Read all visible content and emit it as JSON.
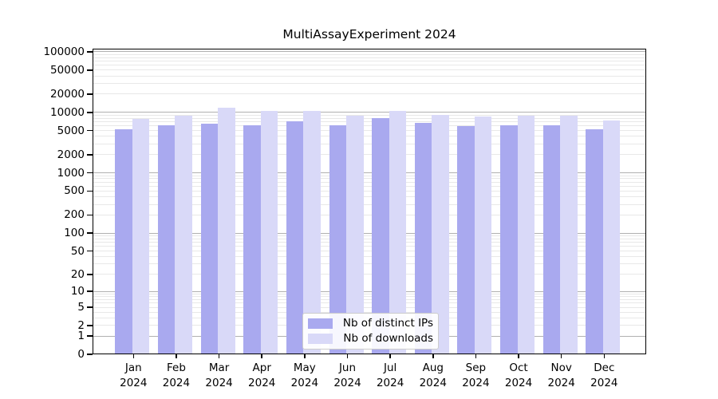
{
  "chart_data": {
    "type": "bar",
    "title": "MultiAssayExperiment 2024",
    "categories": [
      "Jan",
      "Feb",
      "Mar",
      "Apr",
      "May",
      "Jun",
      "Jul",
      "Aug",
      "Sep",
      "Oct",
      "Nov",
      "Dec"
    ],
    "year": "2024",
    "series": [
      {
        "name": "Nb of distinct IPs",
        "color": "#a9a9ef",
        "values": [
          5250,
          6050,
          6500,
          6100,
          7100,
          6050,
          8000,
          6750,
          6000,
          6050,
          6200,
          5300
        ]
      },
      {
        "name": "Nb of downloads",
        "color": "#d9d9f8",
        "values": [
          7900,
          8800,
          12000,
          10500,
          10600,
          8800,
          10700,
          9200,
          8500,
          8900,
          8750,
          7400
        ]
      }
    ],
    "y_scale": "log10(1+value)",
    "y_ticks": [
      0,
      1,
      2,
      5,
      10,
      20,
      50,
      100,
      200,
      500,
      1000,
      2000,
      5000,
      10000,
      20000,
      50000,
      100000
    ],
    "ylim": [
      0,
      118000
    ],
    "grid": true,
    "legend_position": "lower-center-inside",
    "background_color": "#ffffff",
    "axis_color": "#000000",
    "major_grid_color": "#b0b0b0",
    "minor_grid_color": "#e8e8e8",
    "xlabel": "",
    "ylabel": ""
  }
}
